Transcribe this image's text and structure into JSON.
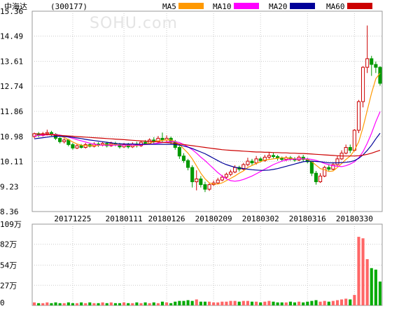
{
  "header": {
    "stock_name": "中海达",
    "stock_code": "(300177)",
    "watermark": "SOHU.com"
  },
  "chart_data": [
    {
      "type": "candlestick",
      "title": "中海达 (300177)",
      "ylim": [
        8.36,
        15.36
      ],
      "y_ticks": [
        "15.36",
        "14.49",
        "13.61",
        "12.74",
        "11.86",
        "10.98",
        "10.11",
        "9.23",
        "8.36"
      ],
      "x_ticks": [
        {
          "index": 9,
          "label": "20171225"
        },
        {
          "index": 21,
          "label": "20180111"
        },
        {
          "index": 31,
          "label": "20180126"
        },
        {
          "index": 42,
          "label": "20180209"
        },
        {
          "index": 53,
          "label": "20180302"
        },
        {
          "index": 64,
          "label": "20180316"
        },
        {
          "index": 75,
          "label": "20180330"
        }
      ],
      "legend": [
        {
          "name": "MA5",
          "color": "#ff9900"
        },
        {
          "name": "MA10",
          "color": "#ff00ff"
        },
        {
          "name": "MA20",
          "color": "#000099"
        },
        {
          "name": "MA60",
          "color": "#cc0000"
        }
      ],
      "up_color": "#cc0000",
      "down_color": "#009900",
      "candles": [
        [
          10.98,
          11.08,
          11.12,
          10.92
        ],
        [
          11.08,
          11.02,
          11.14,
          10.96
        ],
        [
          11.02,
          11.08,
          11.14,
          10.98
        ],
        [
          11.08,
          11.12,
          11.22,
          11.02
        ],
        [
          11.12,
          11.06,
          11.18,
          11.0
        ],
        [
          11.06,
          10.92,
          11.1,
          10.86
        ],
        [
          10.92,
          10.8,
          10.96,
          10.74
        ],
        [
          10.8,
          10.86,
          10.92,
          10.74
        ],
        [
          10.86,
          10.7,
          10.9,
          10.64
        ],
        [
          10.7,
          10.58,
          10.76,
          10.52
        ],
        [
          10.58,
          10.66,
          10.72,
          10.54
        ],
        [
          10.66,
          10.6,
          10.72,
          10.56
        ],
        [
          10.6,
          10.7,
          10.76,
          10.56
        ],
        [
          10.7,
          10.64,
          10.76,
          10.6
        ],
        [
          10.64,
          10.72,
          10.78,
          10.6
        ],
        [
          10.72,
          10.68,
          10.78,
          10.62
        ],
        [
          10.68,
          10.74,
          10.8,
          10.64
        ],
        [
          10.74,
          10.66,
          10.8,
          10.6
        ],
        [
          10.66,
          10.74,
          10.8,
          10.62
        ],
        [
          10.74,
          10.7,
          10.8,
          10.64
        ],
        [
          10.7,
          10.62,
          10.76,
          10.56
        ],
        [
          10.62,
          10.7,
          10.76,
          10.58
        ],
        [
          10.7,
          10.62,
          10.76,
          10.56
        ],
        [
          10.62,
          10.72,
          10.78,
          10.58
        ],
        [
          10.72,
          10.66,
          10.8,
          10.6
        ],
        [
          10.66,
          10.78,
          10.84,
          10.62
        ],
        [
          10.78,
          10.74,
          10.86,
          10.7
        ],
        [
          10.74,
          10.86,
          10.92,
          10.7
        ],
        [
          10.86,
          10.8,
          10.96,
          10.74
        ],
        [
          10.8,
          10.92,
          11.0,
          10.76
        ],
        [
          10.92,
          10.86,
          11.12,
          10.8
        ],
        [
          10.86,
          10.92,
          11.02,
          10.8
        ],
        [
          10.92,
          10.8,
          10.98,
          10.7
        ],
        [
          10.8,
          10.6,
          10.86,
          10.52
        ],
        [
          10.6,
          10.3,
          10.66,
          10.2
        ],
        [
          10.3,
          10.14,
          10.4,
          10.06
        ],
        [
          10.14,
          9.9,
          10.2,
          9.8
        ],
        [
          9.9,
          9.4,
          9.98,
          9.2
        ],
        [
          9.4,
          9.5,
          9.8,
          9.1
        ],
        [
          9.5,
          9.3,
          9.6,
          9.2
        ],
        [
          9.3,
          9.14,
          9.4,
          9.04
        ],
        [
          9.14,
          9.3,
          9.36,
          9.08
        ],
        [
          9.3,
          9.36,
          9.44,
          9.26
        ],
        [
          9.36,
          9.46,
          9.54,
          9.32
        ],
        [
          9.46,
          9.56,
          9.64,
          9.42
        ],
        [
          9.56,
          9.66,
          9.72,
          9.5
        ],
        [
          9.66,
          9.74,
          9.82,
          9.6
        ],
        [
          9.74,
          9.9,
          9.98,
          9.7
        ],
        [
          9.9,
          9.84,
          9.96,
          9.76
        ],
        [
          9.84,
          10.0,
          10.06,
          9.8
        ],
        [
          10.0,
          10.12,
          10.24,
          9.94
        ],
        [
          10.12,
          10.06,
          10.2,
          9.98
        ],
        [
          10.06,
          10.2,
          10.3,
          10.0
        ],
        [
          10.2,
          10.14,
          10.26,
          10.08
        ],
        [
          10.14,
          10.26,
          10.34,
          10.1
        ],
        [
          10.26,
          10.32,
          10.44,
          10.2
        ],
        [
          10.32,
          10.28,
          10.42,
          10.22
        ],
        [
          10.28,
          10.22,
          10.34,
          10.14
        ],
        [
          10.22,
          10.18,
          10.28,
          10.12
        ],
        [
          10.18,
          10.24,
          10.3,
          10.12
        ],
        [
          10.24,
          10.2,
          10.3,
          10.14
        ],
        [
          10.2,
          10.16,
          10.26,
          10.1
        ],
        [
          10.16,
          10.26,
          10.32,
          10.12
        ],
        [
          10.26,
          10.18,
          10.34,
          10.1
        ],
        [
          10.18,
          10.1,
          10.24,
          10.04
        ],
        [
          10.1,
          9.7,
          10.14,
          9.6
        ],
        [
          9.7,
          9.4,
          9.78,
          9.3
        ],
        [
          9.4,
          9.6,
          9.7,
          9.36
        ],
        [
          9.6,
          9.9,
          9.96,
          9.56
        ],
        [
          9.9,
          9.84,
          10.0,
          9.78
        ],
        [
          9.84,
          10.0,
          10.08,
          9.8
        ],
        [
          10.0,
          10.2,
          10.3,
          9.96
        ],
        [
          10.2,
          10.4,
          10.5,
          10.16
        ],
        [
          10.4,
          10.6,
          10.7,
          10.36
        ],
        [
          10.6,
          10.5,
          10.7,
          10.4
        ],
        [
          10.5,
          11.2,
          11.24,
          10.46
        ],
        [
          11.2,
          12.2,
          12.26,
          11.1
        ],
        [
          12.2,
          13.4,
          13.44,
          12.0
        ],
        [
          13.4,
          13.7,
          14.86,
          13.2
        ],
        [
          13.7,
          13.5,
          13.8,
          13.1
        ],
        [
          13.5,
          13.4,
          13.6,
          13.2
        ],
        [
          13.4,
          12.84,
          13.44,
          12.76
        ]
      ],
      "series": [
        {
          "name": "MA5",
          "values": [
            11.0,
            11.02,
            11.04,
            11.05,
            11.06,
            11.06,
            11.0,
            10.95,
            10.87,
            10.79,
            10.72,
            10.68,
            10.66,
            10.66,
            10.66,
            10.67,
            10.7,
            10.69,
            10.7,
            10.7,
            10.69,
            10.68,
            10.67,
            10.67,
            10.66,
            10.7,
            10.72,
            10.75,
            10.8,
            10.83,
            10.85,
            10.86,
            10.86,
            10.8,
            10.7,
            10.55,
            10.4,
            10.2,
            9.95,
            9.7,
            9.5,
            9.36,
            9.32,
            9.32,
            9.36,
            9.44,
            9.52,
            9.6,
            9.7,
            9.78,
            9.9,
            9.97,
            10.04,
            10.1,
            10.16,
            10.18,
            10.2,
            10.22,
            10.24,
            10.24,
            10.22,
            10.2,
            10.2,
            10.2,
            10.18,
            10.1,
            9.98,
            9.86,
            9.82,
            9.76,
            9.78,
            9.9,
            10.04,
            10.18,
            10.3,
            10.5,
            10.8,
            11.3,
            11.9,
            12.5,
            13.0,
            13.2
          ]
        },
        {
          "name": "MA10",
          "values": [
            11.0,
            11.02,
            11.03,
            11.04,
            11.05,
            11.05,
            11.03,
            11.0,
            10.96,
            10.92,
            10.87,
            10.83,
            10.79,
            10.75,
            10.71,
            10.69,
            10.68,
            10.68,
            10.68,
            10.68,
            10.68,
            10.68,
            10.68,
            10.68,
            10.68,
            10.69,
            10.7,
            10.71,
            10.73,
            10.75,
            10.77,
            10.79,
            10.81,
            10.8,
            10.77,
            10.7,
            10.62,
            10.52,
            10.4,
            10.26,
            10.14,
            10.0,
            9.86,
            9.72,
            9.6,
            9.5,
            9.44,
            9.42,
            9.44,
            9.48,
            9.54,
            9.6,
            9.68,
            9.76,
            9.84,
            9.92,
            10.0,
            10.06,
            10.12,
            10.16,
            10.18,
            10.19,
            10.2,
            10.2,
            10.2,
            10.18,
            10.15,
            10.1,
            10.04,
            10.0,
            9.96,
            9.94,
            9.93,
            9.96,
            10.02,
            10.1,
            10.24,
            10.45,
            10.75,
            11.1,
            11.5,
            11.85
          ]
        },
        {
          "name": "MA20",
          "values": [
            10.9,
            10.92,
            10.94,
            10.96,
            10.98,
            10.99,
            10.99,
            10.98,
            10.97,
            10.95,
            10.93,
            10.91,
            10.88,
            10.86,
            10.84,
            10.82,
            10.8,
            10.78,
            10.76,
            10.74,
            10.73,
            10.72,
            10.72,
            10.72,
            10.71,
            10.71,
            10.71,
            10.71,
            10.71,
            10.71,
            10.71,
            10.71,
            10.71,
            10.7,
            10.68,
            10.65,
            10.61,
            10.56,
            10.5,
            10.44,
            10.38,
            10.3,
            10.22,
            10.14,
            10.06,
            10.0,
            9.95,
            9.91,
            9.88,
            9.86,
            9.84,
            9.82,
            9.81,
            9.8,
            9.8,
            9.81,
            9.83,
            9.86,
            9.9,
            9.94,
            9.98,
            10.02,
            10.06,
            10.1,
            10.12,
            10.12,
            10.11,
            10.1,
            10.08,
            10.06,
            10.06,
            10.06,
            10.07,
            10.08,
            10.1,
            10.14,
            10.22,
            10.34,
            10.5,
            10.68,
            10.9,
            11.1
          ]
        },
        {
          "name": "MA60",
          "values": [
            11.08,
            11.07,
            11.06,
            11.05,
            11.04,
            11.03,
            11.02,
            11.01,
            11.0,
            10.99,
            10.98,
            10.97,
            10.96,
            10.95,
            10.94,
            10.93,
            10.92,
            10.91,
            10.9,
            10.89,
            10.88,
            10.87,
            10.86,
            10.85,
            10.84,
            10.83,
            10.82,
            10.81,
            10.8,
            10.79,
            10.78,
            10.77,
            10.76,
            10.74,
            10.72,
            10.7,
            10.68,
            10.66,
            10.64,
            10.62,
            10.6,
            10.58,
            10.56,
            10.54,
            10.52,
            10.51,
            10.5,
            10.49,
            10.48,
            10.47,
            10.46,
            10.45,
            10.44,
            10.44,
            10.43,
            10.43,
            10.42,
            10.42,
            10.41,
            10.41,
            10.4,
            10.4,
            10.39,
            10.39,
            10.38,
            10.37,
            10.36,
            10.35,
            10.34,
            10.33,
            10.32,
            10.31,
            10.3,
            10.3,
            10.3,
            10.3,
            10.31,
            10.33,
            10.36,
            10.4,
            10.45,
            10.5
          ]
        }
      ]
    },
    {
      "type": "bar",
      "title": "",
      "ylim": [
        0,
        109
      ],
      "y_ticks": [
        "109万",
        "82万",
        "54万",
        "27万",
        "0"
      ],
      "unit": "万",
      "up_color": "#ff6666",
      "down_color": "#00aa00",
      "values": [
        4,
        3,
        3,
        4,
        3,
        4,
        3,
        3,
        4,
        3,
        3,
        4,
        3,
        4,
        3,
        3,
        4,
        3,
        4,
        3,
        3,
        4,
        3,
        3,
        4,
        3,
        4,
        3,
        4,
        3,
        5,
        4,
        3,
        5,
        6,
        6,
        7,
        6,
        8,
        5,
        5,
        5,
        4,
        4,
        5,
        5,
        6,
        6,
        5,
        6,
        6,
        5,
        5,
        4,
        5,
        6,
        5,
        4,
        4,
        4,
        5,
        4,
        5,
        4,
        5,
        6,
        7,
        5,
        6,
        5,
        6,
        7,
        8,
        9,
        8,
        14,
        92,
        90,
        62,
        50,
        48,
        32
      ]
    }
  ]
}
